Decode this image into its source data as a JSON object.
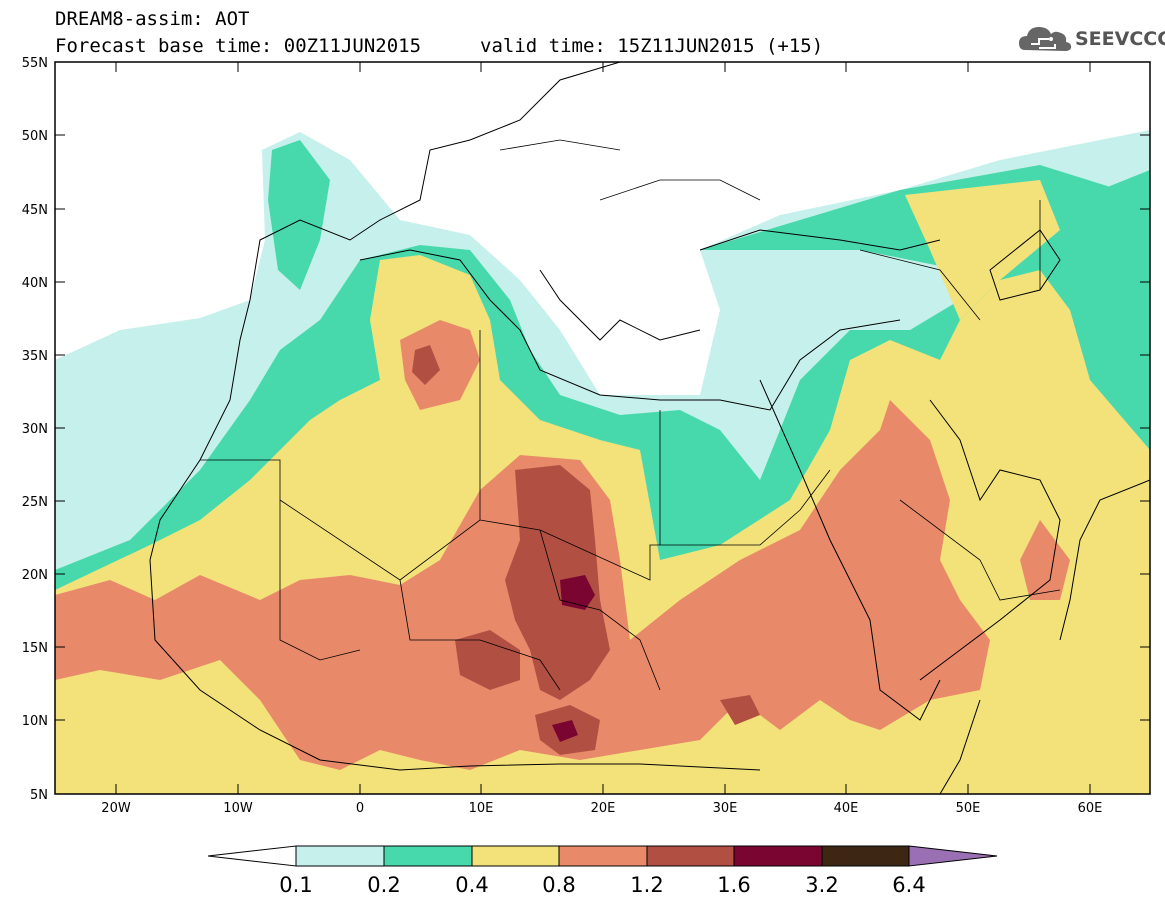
{
  "header": {
    "title": "DREAM8-assim: AOT",
    "base_time": "Forecast base time: 00Z11JUN2015",
    "valid_time": "valid time: 15Z11JUN2015 (+15)"
  },
  "logo": {
    "text": "SEEVCCC",
    "icon": "cloud-icon"
  },
  "axes": {
    "lat_labels": [
      "55N",
      "50N",
      "45N",
      "40N",
      "35N",
      "30N",
      "25N",
      "20N",
      "15N",
      "10N",
      "5N"
    ],
    "lon_labels": [
      "20W",
      "10W",
      "0",
      "10E",
      "20E",
      "30E",
      "40E",
      "50E",
      "60E"
    ]
  },
  "colorbar": {
    "labels": [
      "0.1",
      "0.2",
      "0.4",
      "0.8",
      "1.2",
      "1.6",
      "3.2",
      "6.4"
    ],
    "colors": [
      "#ffffff",
      "#c6f0eb",
      "#47d9ac",
      "#f3e27a",
      "#e8896a",
      "#b24f43",
      "#7a0530",
      "#3d2614",
      "#9a6fb3"
    ]
  },
  "legend_colors": {
    "c01": "#c6f0eb",
    "c02": "#47d9ac",
    "c04": "#f3e27a",
    "c08": "#e8896a",
    "c12": "#b24f43",
    "c16": "#7a0530"
  }
}
